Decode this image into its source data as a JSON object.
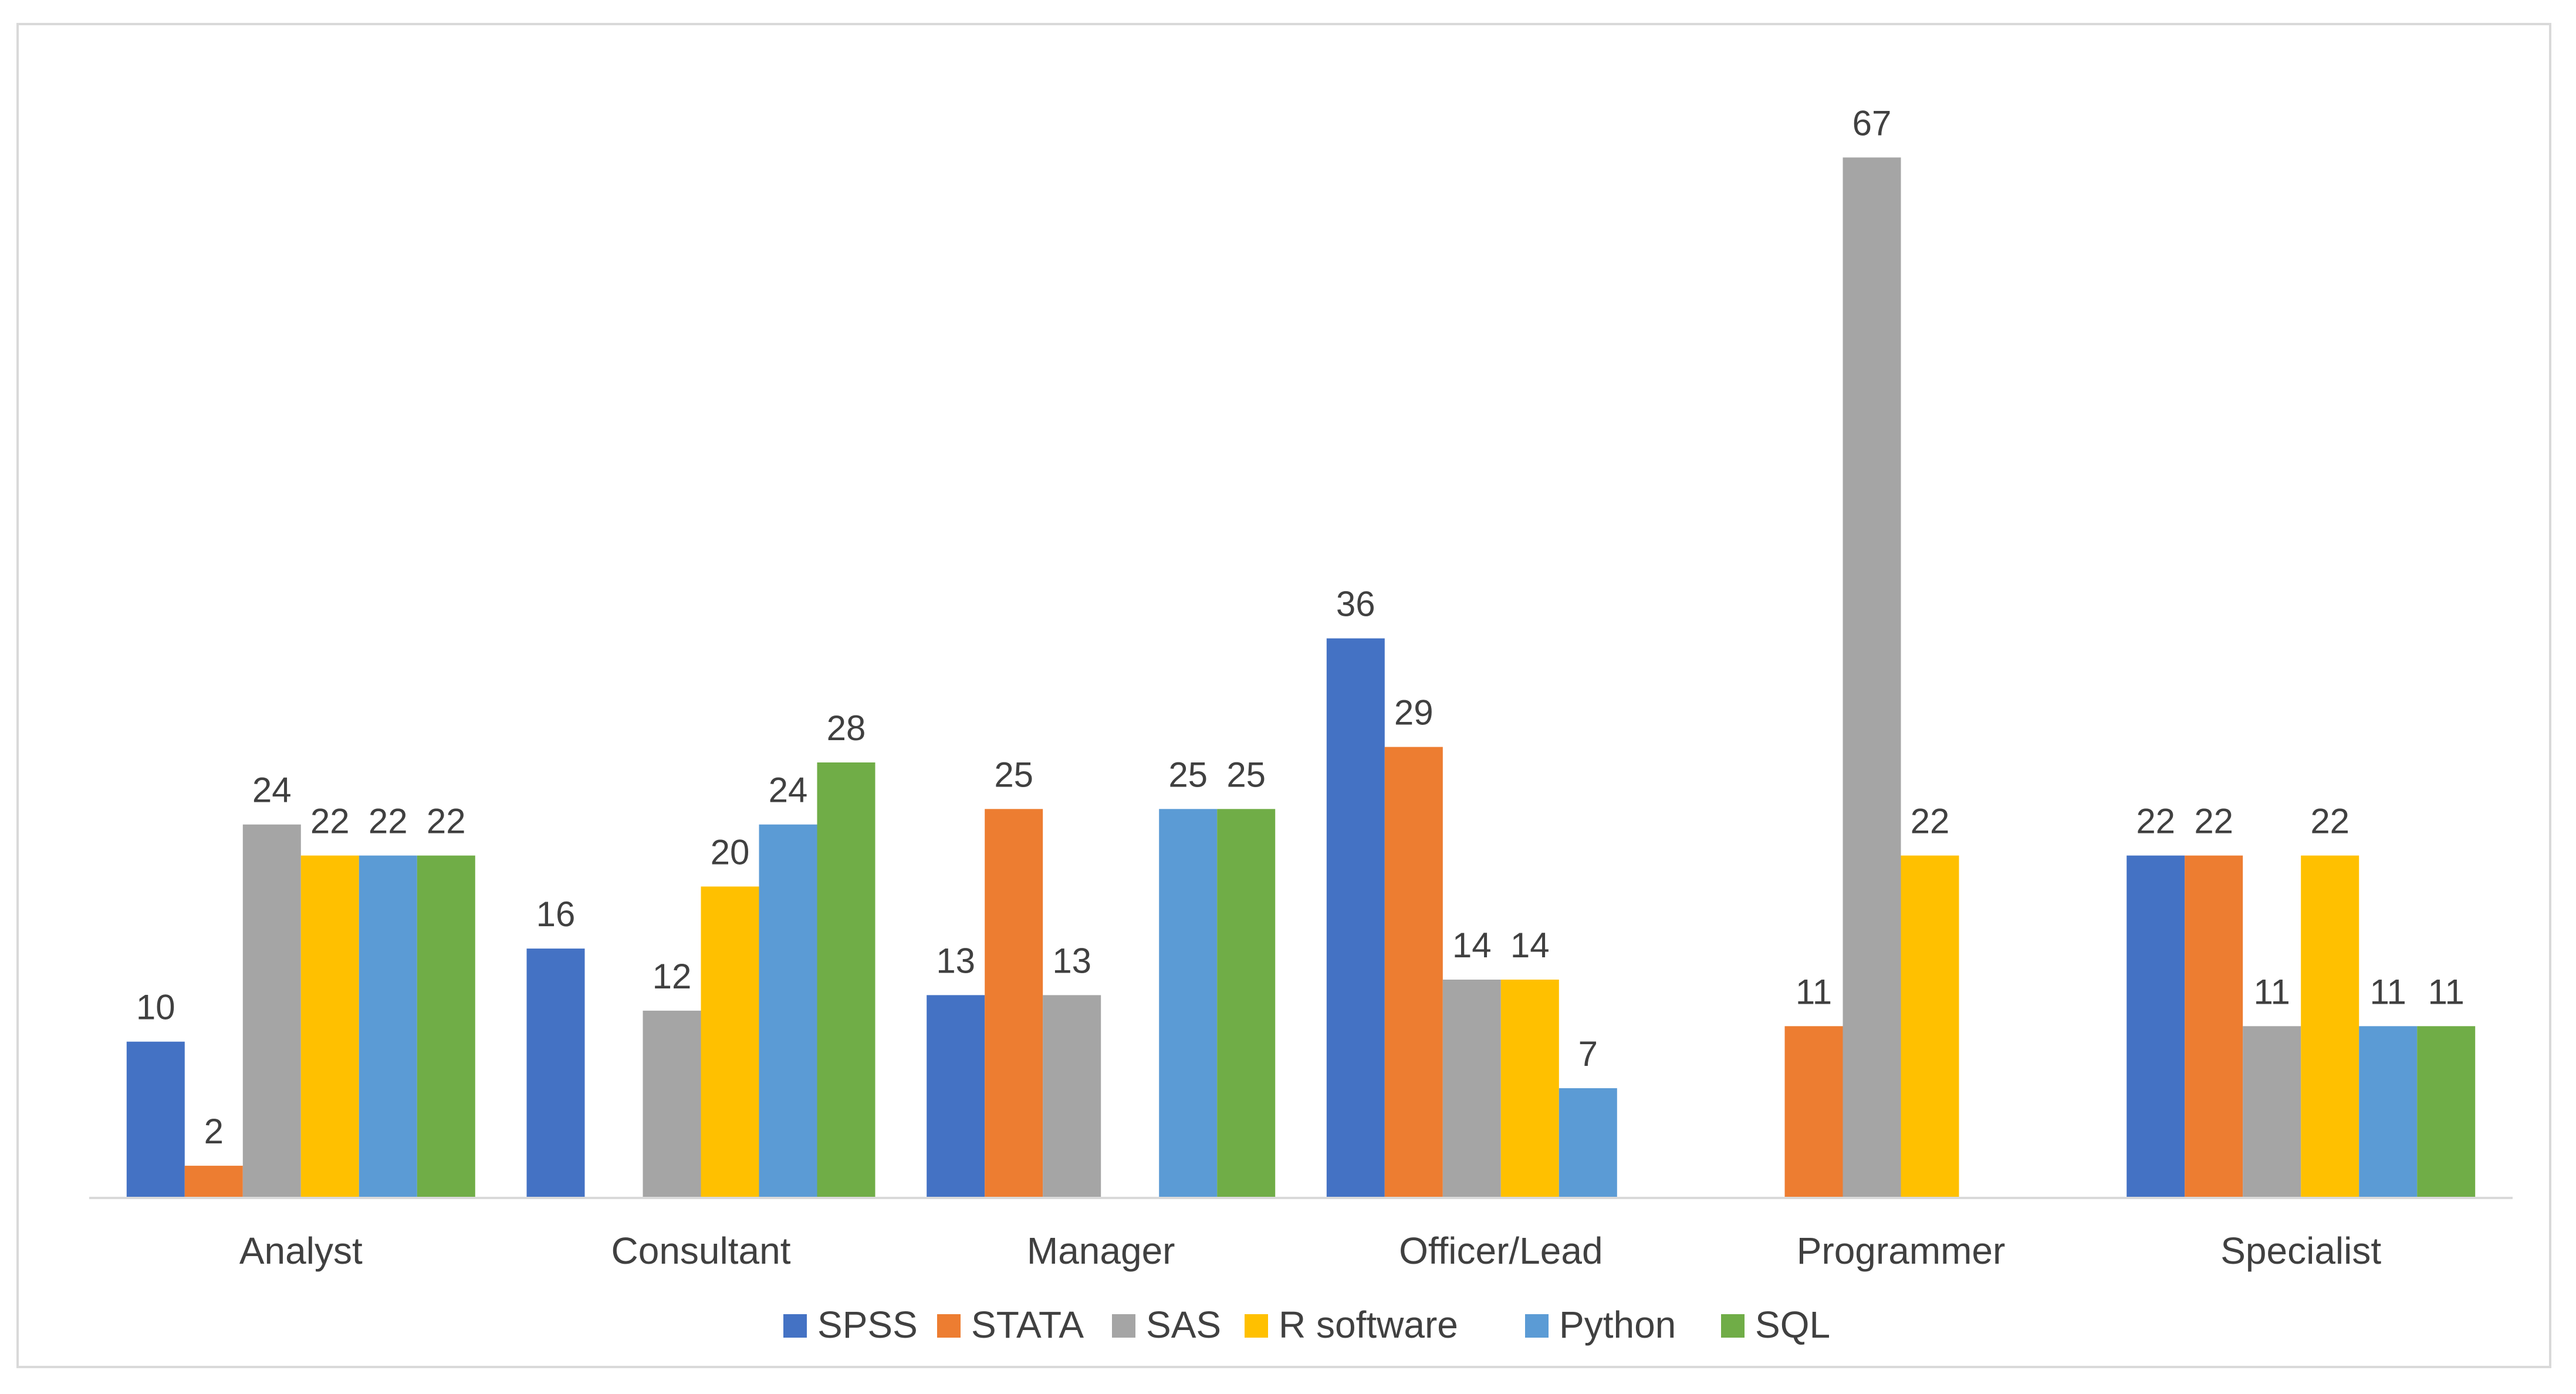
{
  "chart_data": {
    "type": "bar",
    "title": "",
    "xlabel": "",
    "ylabel": "",
    "ylim": [
      0,
      70
    ],
    "grid": false,
    "legend_position": "bottom",
    "categories": [
      "Analyst",
      "Consultant",
      "Manager",
      "Officer/Lead",
      "Programmer",
      "Specialist"
    ],
    "series": [
      {
        "name": "SPSS",
        "color": "#4472c4",
        "values": [
          10,
          16,
          13,
          36,
          null,
          22
        ]
      },
      {
        "name": "STATA",
        "color": "#ed7d31",
        "values": [
          2,
          null,
          25,
          29,
          11,
          22
        ]
      },
      {
        "name": "SAS",
        "color": "#a5a5a5",
        "values": [
          24,
          12,
          13,
          14,
          67,
          11
        ]
      },
      {
        "name": "R software",
        "color": "#ffc000",
        "values": [
          22,
          20,
          null,
          14,
          22,
          22
        ]
      },
      {
        "name": "Python",
        "color": "#5b9bd5",
        "values": [
          22,
          24,
          25,
          7,
          null,
          11
        ]
      },
      {
        "name": "SQL",
        "color": "#70ad47",
        "values": [
          22,
          28,
          25,
          null,
          null,
          11
        ]
      }
    ]
  },
  "colors": {
    "axis": "#d9d9d9",
    "text": "#404040",
    "frame": "#d9d9d9"
  }
}
